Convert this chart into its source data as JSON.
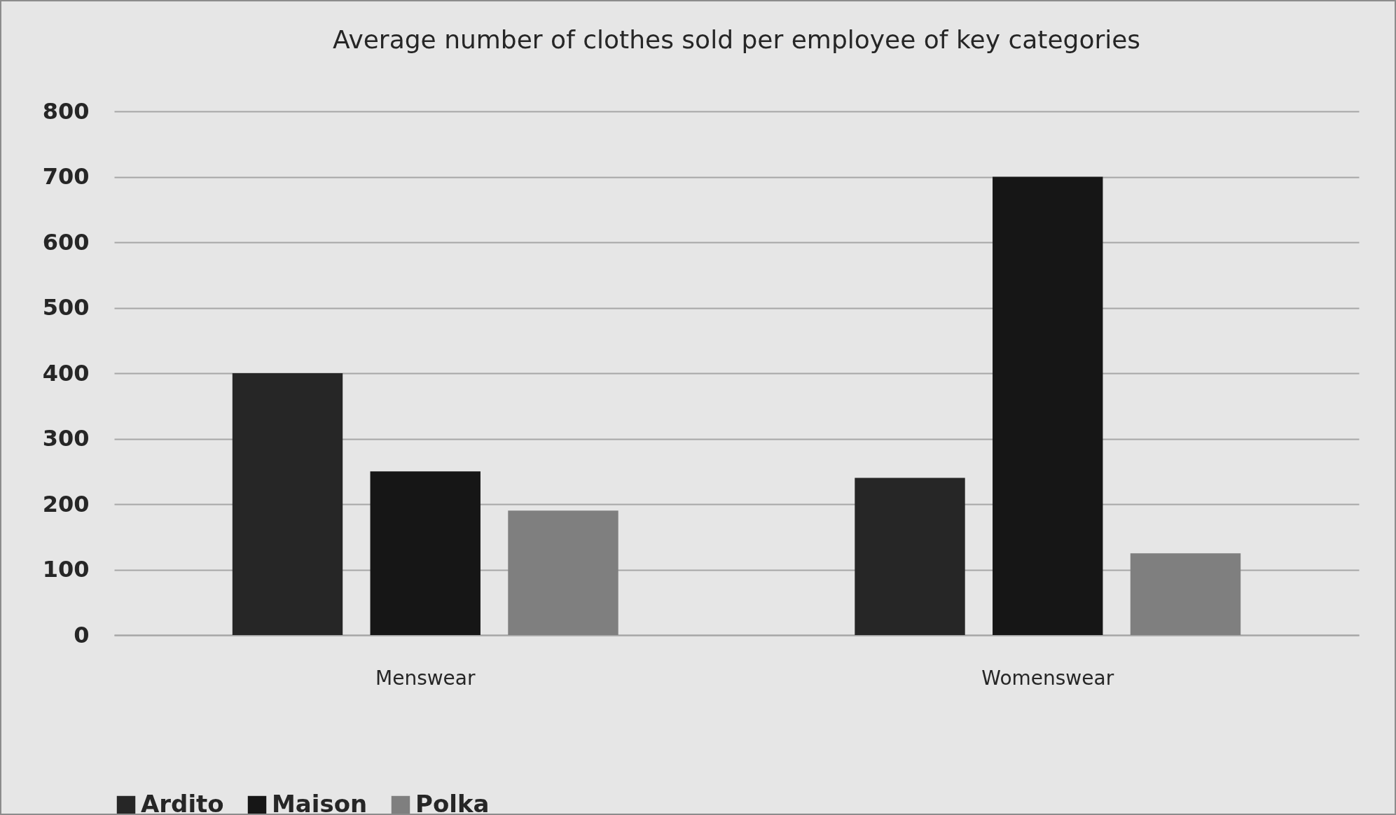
{
  "chart_data": {
    "type": "bar",
    "title": "Average number of clothes sold per employee of key categories",
    "categories": [
      "Menswear",
      "Womenswear"
    ],
    "series": [
      {
        "name": "Ardito",
        "color": "#262626",
        "values": [
          400,
          240
        ]
      },
      {
        "name": "Maison",
        "color": "#161616",
        "values": [
          250,
          700
        ]
      },
      {
        "name": "Polka",
        "color": "#7f7f7f",
        "values": [
          190,
          125
        ]
      }
    ],
    "ylim": [
      0,
      800
    ],
    "yticks": [
      0,
      100,
      200,
      300,
      400,
      500,
      600,
      700,
      800
    ],
    "grid": "y",
    "legend": "bottom"
  }
}
